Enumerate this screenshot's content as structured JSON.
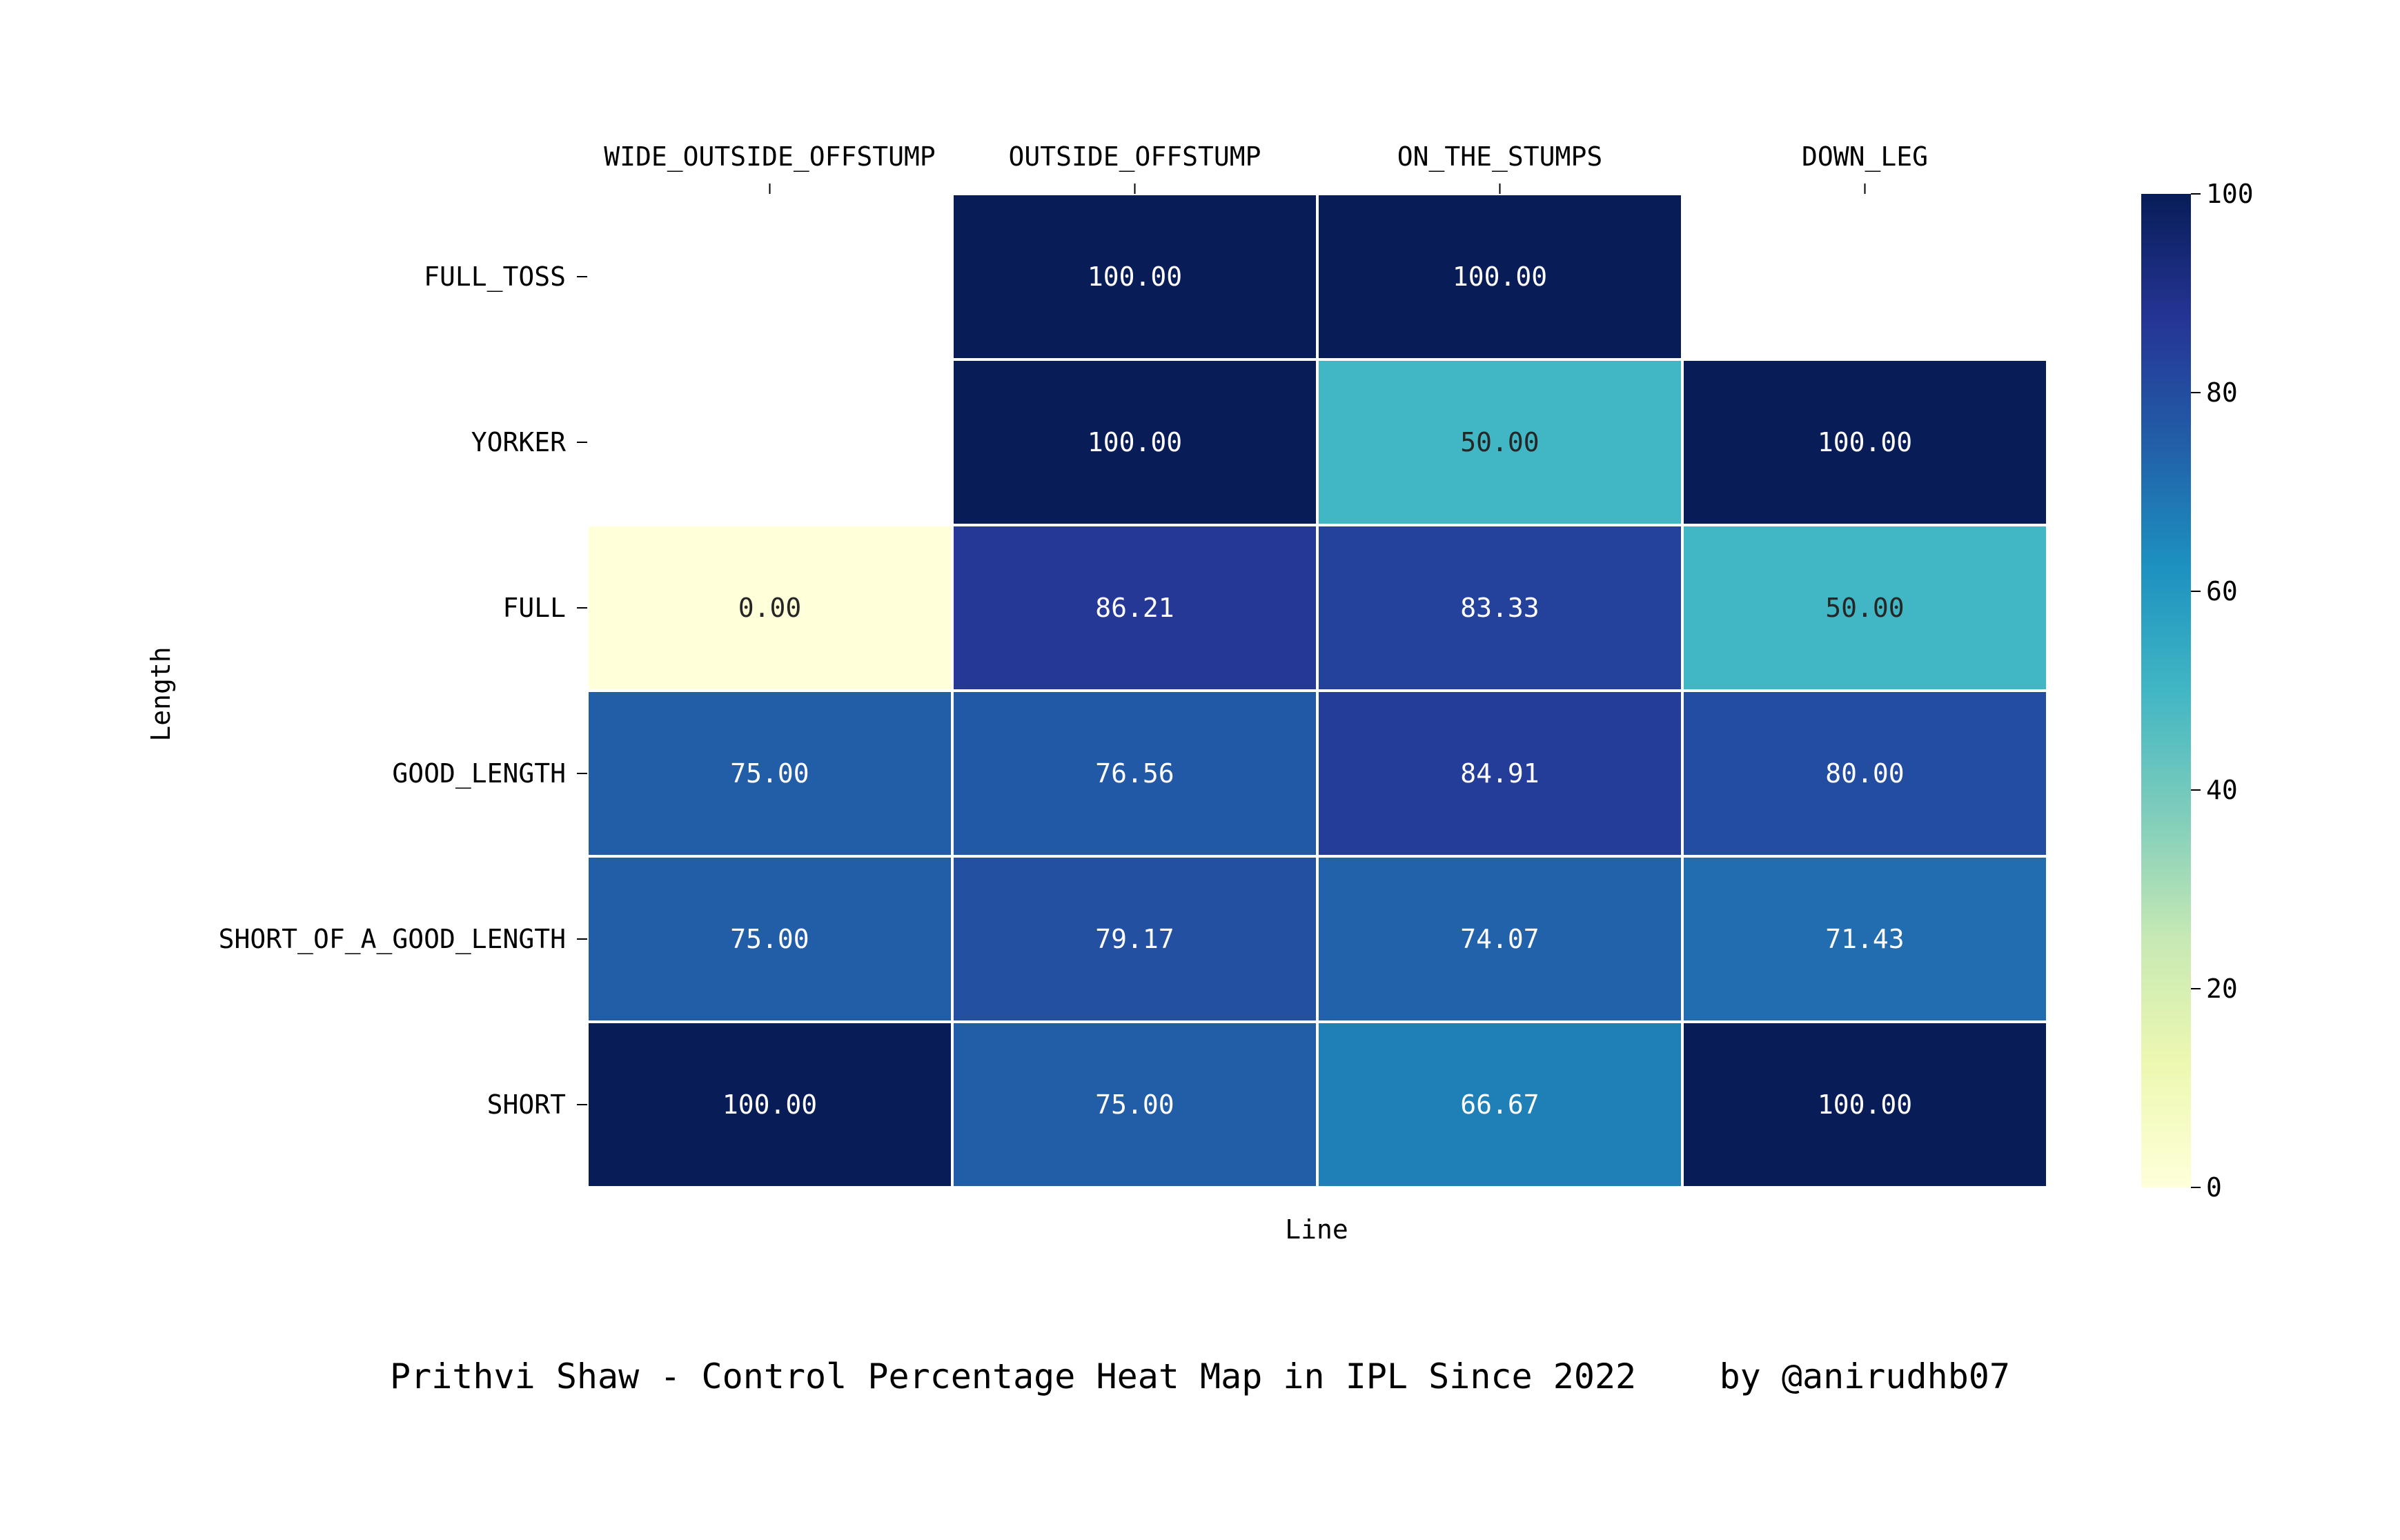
{
  "chart_data": {
    "type": "heatmap",
    "title": "Prithvi Shaw - Control Percentage Heat Map in IPL Since 2022    by @anirudhb07",
    "xlabel": "Line",
    "ylabel": "Length",
    "x_categories": [
      "WIDE_OUTSIDE_OFFSTUMP",
      "OUTSIDE_OFFSTUMP",
      "ON_THE_STUMPS",
      "DOWN_LEG"
    ],
    "y_categories": [
      "FULL_TOSS",
      "YORKER",
      "FULL",
      "GOOD_LENGTH",
      "SHORT_OF_A_GOOD_LENGTH",
      "SHORT"
    ],
    "values": [
      [
        null,
        100.0,
        100.0,
        null
      ],
      [
        null,
        100.0,
        50.0,
        100.0
      ],
      [
        0.0,
        86.21,
        83.33,
        50.0
      ],
      [
        75.0,
        76.56,
        84.91,
        80.0
      ],
      [
        75.0,
        79.17,
        74.07,
        71.43
      ],
      [
        100.0,
        75.0,
        66.67,
        100.0
      ]
    ],
    "value_format": "0.00",
    "colorbar": {
      "range": [
        0,
        100
      ],
      "ticks": [
        "0",
        "20",
        "40",
        "60",
        "80",
        "100"
      ],
      "colormap": "YlGnBu"
    },
    "x_axis_position": "top",
    "grid": false
  }
}
